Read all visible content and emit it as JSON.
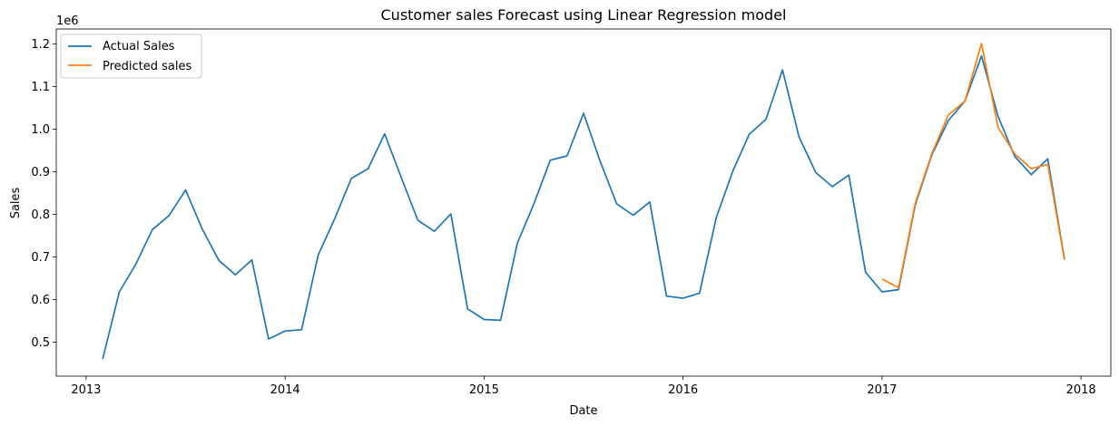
{
  "chart_data": {
    "type": "line",
    "title": "Customer sales Forecast using Linear Regression model",
    "xlabel": "Date",
    "ylabel": "Sales",
    "y_offset_label": "1e6",
    "xlim": [
      2012.85,
      2018.15
    ],
    "ylim": [
      420000,
      1235000
    ],
    "x_ticks": [
      2013,
      2014,
      2015,
      2016,
      2017,
      2018
    ],
    "x_tick_labels": [
      "2013",
      "2014",
      "2015",
      "2016",
      "2017",
      "2018"
    ],
    "y_ticks": [
      500000,
      600000,
      700000,
      800000,
      900000,
      1000000,
      1100000,
      1200000
    ],
    "y_tick_labels": [
      "0.5",
      "0.6",
      "0.7",
      "0.8",
      "0.9",
      "1.0",
      "1.1",
      "1.2"
    ],
    "grid": false,
    "legend_position": "top-left",
    "series": [
      {
        "name": "Actual Sales",
        "color": "#1f77b4",
        "x": [
          2013.083,
          2013.167,
          2013.25,
          2013.333,
          2013.417,
          2013.5,
          2013.583,
          2013.667,
          2013.75,
          2013.833,
          2013.917,
          2014.0,
          2014.083,
          2014.167,
          2014.25,
          2014.333,
          2014.417,
          2014.5,
          2014.583,
          2014.667,
          2014.75,
          2014.833,
          2014.917,
          2015.0,
          2015.083,
          2015.167,
          2015.25,
          2015.333,
          2015.417,
          2015.5,
          2015.583,
          2015.667,
          2015.75,
          2015.833,
          2015.917,
          2016.0,
          2016.083,
          2016.167,
          2016.25,
          2016.333,
          2016.417,
          2016.5,
          2016.583,
          2016.667,
          2016.75,
          2016.833,
          2016.917,
          2017.0,
          2017.083,
          2017.167,
          2017.25,
          2017.333,
          2017.417,
          2017.5,
          2017.583,
          2017.667,
          2017.75,
          2017.833,
          2017.917
        ],
        "values": [
          460000,
          618000,
          683000,
          764000,
          797000,
          857000,
          766000,
          692000,
          658000,
          693000,
          507000,
          526000,
          529000,
          705000,
          790000,
          884000,
          907000,
          989000,
          887000,
          786000,
          760000,
          801000,
          578000,
          553000,
          551000,
          732000,
          824000,
          927000,
          937000,
          1037000,
          925000,
          824000,
          798000,
          829000,
          608000,
          603000,
          615000,
          792000,
          901000,
          988000,
          1023000,
          1139000,
          982000,
          898000,
          865000,
          892000,
          664000,
          618000,
          623000,
          822000,
          939000,
          1020000,
          1066000,
          1172000,
          1030000,
          936000,
          893000,
          930000,
          695000
        ]
      },
      {
        "name": "Predicted sales",
        "color": "#ff7f0e",
        "x": [
          2017.0,
          2017.083,
          2017.167,
          2017.25,
          2017.333,
          2017.417,
          2017.5,
          2017.583,
          2017.667,
          2017.75,
          2017.833,
          2017.917
        ],
        "values": [
          648000,
          628000,
          826000,
          942000,
          1033000,
          1066000,
          1201000,
          1004000,
          942000,
          907000,
          917000,
          693000
        ]
      }
    ]
  }
}
